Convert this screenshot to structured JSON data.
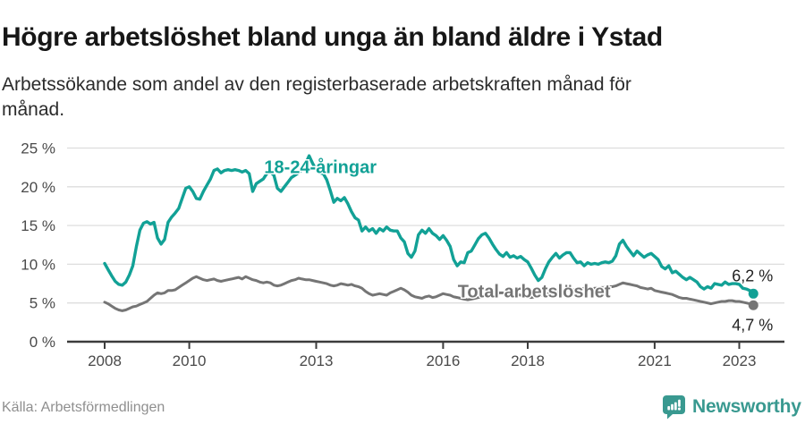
{
  "header": {
    "title": "Högre arbetslöshet bland unga än bland äldre i Ystad",
    "subtitle": "Arbetssökande som andel av den registerbaserade arbetskraften månad för månad."
  },
  "footer": {
    "source": "Källa: Arbetsförmedlingen",
    "brand": "Newsworthy"
  },
  "colors": {
    "youth_line": "#12A196",
    "total_line": "#757575",
    "brand_teal": "#399990",
    "grid": "#dddddd",
    "axis": "#3c3c3c",
    "axis_text": "#4a4a4a",
    "end_label_text": "#222222"
  },
  "chart_data": {
    "type": "line",
    "x_start_year": 2008,
    "x_step_months": 1,
    "ylim": [
      0,
      25
    ],
    "y_ticks": [
      0,
      5,
      10,
      15,
      20,
      25
    ],
    "y_tick_suffix": " %",
    "x_ticks": [
      2008,
      2010,
      2013,
      2016,
      2018,
      2021,
      2023
    ],
    "grid": true,
    "legend_position": "inline-labels",
    "series": [
      {
        "name": "18-24-åringar",
        "color": "#12A196",
        "end_label": "6,2 %",
        "label_pos": {
          "x": 2013.1,
          "y": 22.6
        },
        "values": [
          10.1,
          9.3,
          8.5,
          7.8,
          7.4,
          7.3,
          7.7,
          8.6,
          9.8,
          12.3,
          14.4,
          15.3,
          15.5,
          15.2,
          15.4,
          13.4,
          12.6,
          13.2,
          15.4,
          16.1,
          16.6,
          17.2,
          18.5,
          19.8,
          20.0,
          19.4,
          18.5,
          18.4,
          19.4,
          20.2,
          21.0,
          22.1,
          22.3,
          21.8,
          22.1,
          22.2,
          22.1,
          22.2,
          22.1,
          21.9,
          22.1,
          21.7,
          19.4,
          20.4,
          20.7,
          21.0,
          21.7,
          21.9,
          21.5,
          19.8,
          19.4,
          20.0,
          20.6,
          21.2,
          21.5,
          21.8,
          22.2,
          23.0,
          24.0,
          23.0,
          22.2,
          21.8,
          21.7,
          20.9,
          19.5,
          18.0,
          18.5,
          18.2,
          18.6,
          17.8,
          16.8,
          16.0,
          15.7,
          14.3,
          14.8,
          14.3,
          14.6,
          14.0,
          14.6,
          14.3,
          14.8,
          14.4,
          14.3,
          14.3,
          13.4,
          12.9,
          11.4,
          10.9,
          11.7,
          13.8,
          14.4,
          14.0,
          14.6,
          14.0,
          13.7,
          13.2,
          13.7,
          13.1,
          12.3,
          10.6,
          9.8,
          10.3,
          10.2,
          11.5,
          11.7,
          12.5,
          13.3,
          13.8,
          14.0,
          13.4,
          12.6,
          11.9,
          11.3,
          11.0,
          11.5,
          10.9,
          11.1,
          10.8,
          11.0,
          10.6,
          10.3,
          9.5,
          8.6,
          7.9,
          8.3,
          9.4,
          10.3,
          10.9,
          11.4,
          10.8,
          11.2,
          11.5,
          11.5,
          10.8,
          10.2,
          10.3,
          9.8,
          10.2,
          10.0,
          10.1,
          10.0,
          10.2,
          10.3,
          10.2,
          10.4,
          11.1,
          12.6,
          13.1,
          12.3,
          11.7,
          11.1,
          11.7,
          11.3,
          10.9,
          11.2,
          11.4,
          11.0,
          10.6,
          9.7,
          9.4,
          9.8,
          8.9,
          9.1,
          8.7,
          8.3,
          8.0,
          8.3,
          8.0,
          7.7,
          7.1,
          6.8,
          7.1,
          6.9,
          7.5,
          7.4,
          7.3,
          7.7,
          7.4,
          7.5,
          7.5,
          7.4,
          6.9,
          6.8,
          6.6,
          6.2
        ]
      },
      {
        "name": "Total arbetslöshet",
        "color": "#757575",
        "end_label": "4,7 %",
        "label_pos": {
          "x": 2018.15,
          "y": 6.5
        },
        "values": [
          5.1,
          4.9,
          4.6,
          4.3,
          4.1,
          4.0,
          4.1,
          4.3,
          4.5,
          4.6,
          4.8,
          5.0,
          5.2,
          5.6,
          6.0,
          6.3,
          6.2,
          6.3,
          6.6,
          6.6,
          6.7,
          7.0,
          7.3,
          7.6,
          7.9,
          8.2,
          8.4,
          8.2,
          8.0,
          7.9,
          8.0,
          8.1,
          7.9,
          7.8,
          7.9,
          8.0,
          8.1,
          8.2,
          8.3,
          8.1,
          8.4,
          8.2,
          8.0,
          7.9,
          7.7,
          7.6,
          7.7,
          7.6,
          7.3,
          7.2,
          7.3,
          7.5,
          7.7,
          7.9,
          8.0,
          8.2,
          8.1,
          8.0,
          8.0,
          7.9,
          7.8,
          7.7,
          7.6,
          7.5,
          7.3,
          7.2,
          7.3,
          7.5,
          7.4,
          7.3,
          7.4,
          7.2,
          7.1,
          6.9,
          6.5,
          6.2,
          6.0,
          6.1,
          6.2,
          6.1,
          6.0,
          6.3,
          6.5,
          6.7,
          6.9,
          6.7,
          6.4,
          6.0,
          5.8,
          5.7,
          5.6,
          5.8,
          5.9,
          5.7,
          5.8,
          6.0,
          6.2,
          6.1,
          6.0,
          5.8,
          5.7,
          5.6,
          5.5,
          5.4,
          5.5,
          5.6,
          5.7,
          5.8,
          5.9,
          6.0,
          6.1,
          6.2,
          6.3,
          6.3,
          6.2,
          6.2,
          6.1,
          6.1,
          6.0,
          5.9,
          5.8,
          5.7,
          5.8,
          5.9,
          6.0,
          6.1,
          6.2,
          6.3,
          6.4,
          6.5,
          6.6,
          6.7,
          6.8,
          6.7,
          6.7,
          6.8,
          6.9,
          6.8,
          6.8,
          6.9,
          6.9,
          7.0,
          7.0,
          7.1,
          7.1,
          7.2,
          7.4,
          7.6,
          7.5,
          7.4,
          7.3,
          7.2,
          7.0,
          6.9,
          6.8,
          6.9,
          6.6,
          6.5,
          6.4,
          6.3,
          6.2,
          6.1,
          5.9,
          5.7,
          5.6,
          5.6,
          5.5,
          5.4,
          5.3,
          5.2,
          5.1,
          5.0,
          4.9,
          5.0,
          5.1,
          5.2,
          5.2,
          5.3,
          5.3,
          5.2,
          5.2,
          5.1,
          5.0,
          4.9,
          4.7
        ]
      }
    ]
  }
}
